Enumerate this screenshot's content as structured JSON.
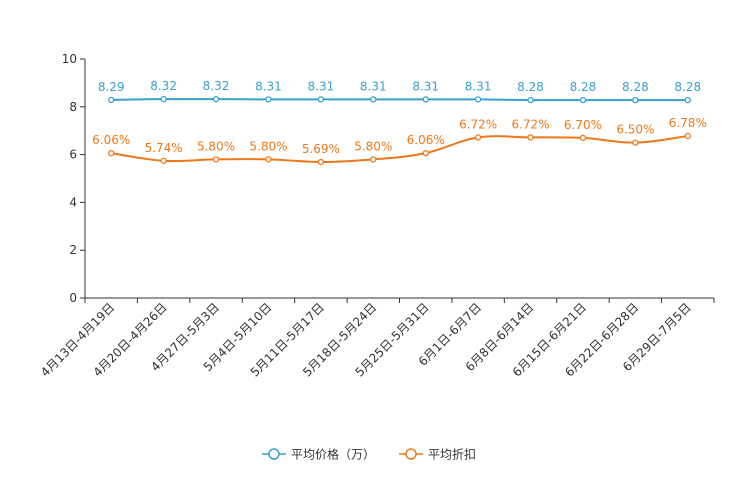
{
  "chart_data": {
    "type": "line",
    "title": "",
    "xlabel": "",
    "ylabel": "",
    "ylim": [
      0,
      10
    ],
    "yticks": [
      0,
      2,
      4,
      6,
      8,
      10
    ],
    "grid": false,
    "legend_position": "bottom-center",
    "categories": [
      "4月13日-4月19日",
      "4月20日-4月26日",
      "4月27日-5月3日",
      "5月4日-5月10日",
      "5月11日-5月17日",
      "5月18日-5月24日",
      "5月25日-5月31日",
      "6月1日-6月7日",
      "6月8日-6月14日",
      "6月15日-6月21日",
      "6月22日-6月28日",
      "6月29日-7月5日"
    ],
    "series": [
      {
        "name": "平均价格（万）",
        "color": "#3aa0cf",
        "values": [
          8.29,
          8.32,
          8.32,
          8.31,
          8.31,
          8.31,
          8.31,
          8.31,
          8.28,
          8.28,
          8.28,
          8.28
        ],
        "labels": [
          "8.29",
          "8.32",
          "8.32",
          "8.31",
          "8.31",
          "8.31",
          "8.31",
          "8.31",
          "8.28",
          "8.28",
          "8.28",
          "8.28"
        ]
      },
      {
        "name": "平均折扣",
        "color": "#f07818",
        "values": [
          6.06,
          5.74,
          5.8,
          5.8,
          5.69,
          5.8,
          6.06,
          6.72,
          6.72,
          6.7,
          6.5,
          6.78
        ],
        "labels": [
          "6.06%",
          "5.74%",
          "5.80%",
          "5.80%",
          "5.69%",
          "5.80%",
          "6.06%",
          "6.72%",
          "6.72%",
          "6.70%",
          "6.50%",
          "6.78%"
        ]
      }
    ]
  }
}
